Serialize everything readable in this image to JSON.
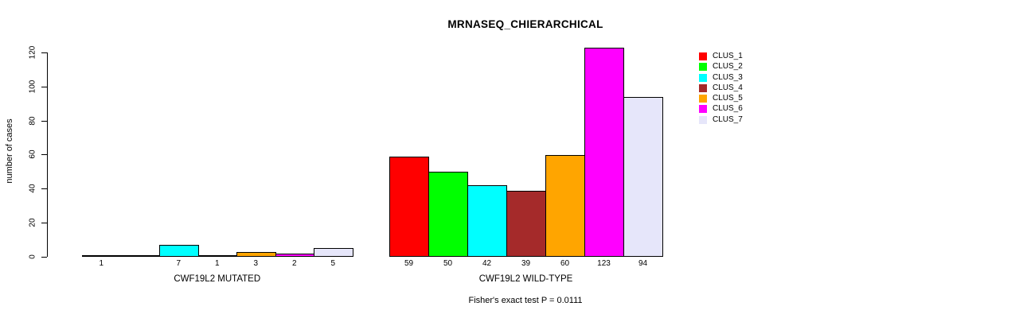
{
  "title": "MRNASEQ_CHIERARCHICAL",
  "footer": "Fisher's exact test P = 0.0111",
  "chart_data": {
    "type": "bar",
    "title": "MRNASEQ_CHIERARCHICAL",
    "xlabel": "",
    "ylabel": "number of cases",
    "ylim": [
      0,
      130
    ],
    "yticks": [
      0,
      20,
      40,
      60,
      80,
      100,
      120
    ],
    "grid": false,
    "legend_position": "right",
    "legend": [
      "CLUS_1",
      "CLUS_2",
      "CLUS_3",
      "CLUS_4",
      "CLUS_5",
      "CLUS_6",
      "CLUS_7"
    ],
    "series_colors": [
      "#FF0000",
      "#00FF00",
      "#00FFFF",
      "#A52A2A",
      "#FFA500",
      "#FF00FF",
      "#E6E6FA"
    ],
    "groups": [
      {
        "label": "CWF19L2 MUTATED",
        "values": [
          1,
          0,
          7,
          1,
          3,
          2,
          5
        ],
        "bar_labels": [
          "1",
          "",
          "7",
          "1",
          "3",
          "2",
          "5"
        ]
      },
      {
        "label": "CWF19L2 WILD-TYPE",
        "values": [
          59,
          50,
          42,
          39,
          60,
          123,
          94
        ],
        "bar_labels": [
          "59",
          "50",
          "42",
          "39",
          "60",
          "123",
          "94"
        ]
      }
    ],
    "annotation": "Fisher's exact test P = 0.0111"
  }
}
